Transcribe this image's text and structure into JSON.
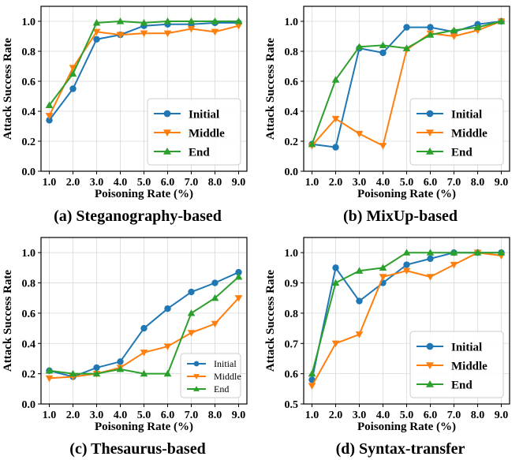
{
  "colors": {
    "Initial": "#1f77b4",
    "Middle": "#ff7f0e",
    "End": "#2ca02c"
  },
  "markers": {
    "Initial": "circle",
    "Middle": "triangle-down",
    "End": "triangle-up"
  },
  "chart_data": [
    {
      "type": "line",
      "caption": "(a) Steganography-based",
      "xlabel": "Poisoning Rate (%)",
      "ylabel": "Attack Success Rate",
      "x": [
        1.0,
        2.0,
        3.0,
        4.0,
        5.0,
        6.0,
        7.0,
        8.0,
        9.0
      ],
      "xtick_labels": [
        "1.0",
        "2.0",
        "3.0",
        "4.0",
        "5.0",
        "6.0",
        "7.0",
        "8.0",
        "9.0"
      ],
      "xlim": [
        0.65,
        9.35
      ],
      "ylim": [
        0.0,
        1.1
      ],
      "yticks": [
        0.0,
        0.2,
        0.4,
        0.6,
        0.8,
        1.0
      ],
      "ytick_labels": [
        "0.0",
        "0.2",
        "0.4",
        "0.6",
        "0.8",
        "1.0"
      ],
      "grid": true,
      "legend_position": "lower-right",
      "legend_size": "large",
      "series": [
        {
          "name": "Initial",
          "values": [
            0.34,
            0.55,
            0.88,
            0.91,
            0.97,
            0.98,
            0.98,
            0.99,
            0.99
          ]
        },
        {
          "name": "Middle",
          "values": [
            0.37,
            0.69,
            0.93,
            0.91,
            0.92,
            0.92,
            0.95,
            0.93,
            0.97
          ]
        },
        {
          "name": "End",
          "values": [
            0.44,
            0.65,
            0.99,
            1.0,
            0.99,
            1.0,
            1.0,
            1.0,
            1.0
          ]
        }
      ]
    },
    {
      "type": "line",
      "caption": "(b) MixUp-based",
      "xlabel": "Poisoning Rate (%)",
      "ylabel": "Attack Success Rate",
      "x": [
        1.0,
        2.0,
        3.0,
        4.0,
        5.0,
        6.0,
        7.0,
        8.0,
        9.0
      ],
      "xtick_labels": [
        "1.0",
        "2.0",
        "3.0",
        "4.0",
        "5.0",
        "6.0",
        "7.0",
        "8.0",
        "9.0"
      ],
      "xlim": [
        0.65,
        9.35
      ],
      "ylim": [
        0.0,
        1.1
      ],
      "yticks": [
        0.0,
        0.2,
        0.4,
        0.6,
        0.8,
        1.0
      ],
      "ytick_labels": [
        "0.0",
        "0.2",
        "0.4",
        "0.6",
        "0.8",
        "1.0"
      ],
      "grid": true,
      "legend_position": "lower-right",
      "legend_size": "large",
      "series": [
        {
          "name": "Initial",
          "values": [
            0.18,
            0.16,
            0.82,
            0.79,
            0.96,
            0.96,
            0.93,
            0.98,
            1.0
          ]
        },
        {
          "name": "Middle",
          "values": [
            0.17,
            0.35,
            0.25,
            0.17,
            0.81,
            0.92,
            0.9,
            0.94,
            1.0
          ]
        },
        {
          "name": "End",
          "values": [
            0.18,
            0.61,
            0.83,
            0.84,
            0.82,
            0.91,
            0.94,
            0.96,
            1.0
          ]
        }
      ]
    },
    {
      "type": "line",
      "caption": "(c) Thesaurus-based",
      "xlabel": "Poisoning Rate (%)",
      "ylabel": "Attack Success Rate",
      "x": [
        1.0,
        2.0,
        3.0,
        4.0,
        5.0,
        6.0,
        7.0,
        8.0,
        9.0
      ],
      "xtick_labels": [
        "1.0",
        "2.0",
        "3.0",
        "4.0",
        "5.0",
        "6.0",
        "7.0",
        "8.0",
        "9.0"
      ],
      "xlim": [
        0.65,
        9.35
      ],
      "ylim": [
        0.0,
        1.1
      ],
      "yticks": [
        0.0,
        0.2,
        0.4,
        0.6,
        0.8,
        1.0
      ],
      "ytick_labels": [
        "0.0",
        "0.2",
        "0.4",
        "0.6",
        "0.8",
        "1.0"
      ],
      "grid": true,
      "legend_position": "lower-right",
      "legend_size": "small",
      "series": [
        {
          "name": "Initial",
          "values": [
            0.22,
            0.18,
            0.24,
            0.28,
            0.5,
            0.63,
            0.74,
            0.8,
            0.87
          ]
        },
        {
          "name": "Middle",
          "values": [
            0.17,
            0.18,
            0.2,
            0.24,
            0.34,
            0.38,
            0.47,
            0.53,
            0.7
          ]
        },
        {
          "name": "End",
          "values": [
            0.22,
            0.2,
            0.2,
            0.23,
            0.2,
            0.2,
            0.6,
            0.7,
            0.84
          ]
        }
      ]
    },
    {
      "type": "line",
      "caption": "(d) Syntax-transfer",
      "xlabel": "Poisoning Rate (%)",
      "ylabel": "Attack Success Rate",
      "x": [
        1.0,
        2.0,
        3.0,
        4.0,
        5.0,
        6.0,
        7.0,
        8.0,
        9.0
      ],
      "xtick_labels": [
        "1.0",
        "2.0",
        "3.0",
        "4.0",
        "5.0",
        "6.0",
        "7.0",
        "8.0",
        "9.0"
      ],
      "xlim": [
        0.65,
        9.35
      ],
      "ylim": [
        0.5,
        1.05
      ],
      "yticks": [
        0.5,
        0.6,
        0.7,
        0.8,
        0.9,
        1.0
      ],
      "ytick_labels": [
        "0.5",
        "0.6",
        "0.7",
        "0.8",
        "0.9",
        "1.0"
      ],
      "grid": true,
      "legend_position": "lower-right",
      "legend_size": "large",
      "series": [
        {
          "name": "Initial",
          "values": [
            0.58,
            0.95,
            0.84,
            0.9,
            0.96,
            0.98,
            1.0,
            1.0,
            1.0
          ]
        },
        {
          "name": "Middle",
          "values": [
            0.56,
            0.7,
            0.73,
            0.92,
            0.94,
            0.92,
            0.96,
            1.0,
            0.99
          ]
        },
        {
          "name": "End",
          "values": [
            0.6,
            0.9,
            0.94,
            0.95,
            1.0,
            1.0,
            1.0,
            1.0,
            1.0
          ]
        }
      ]
    }
  ]
}
